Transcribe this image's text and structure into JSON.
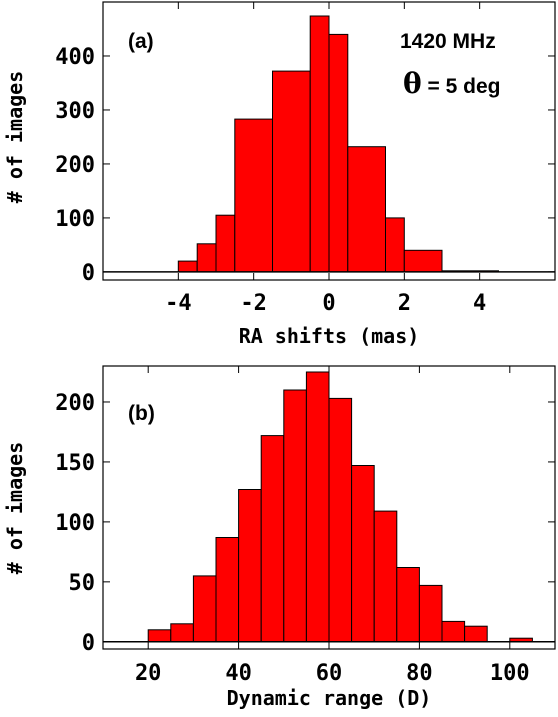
{
  "chart_data": [
    {
      "type": "bar",
      "panel_label": "(a)",
      "annotations": [
        "1420 MHz",
        "θ",
        " = 5 deg"
      ],
      "xlabel": "RA shifts (mas)",
      "ylabel": "# of images",
      "xlim": [
        -6,
        6
      ],
      "ylim": [
        -15,
        500
      ],
      "xticks": [
        -4,
        -2,
        0,
        2,
        4
      ],
      "yticks": [
        0,
        100,
        200,
        300,
        400
      ],
      "xtick_labels": [
        "-4",
        "-2",
        "0",
        "2",
        "4"
      ],
      "ytick_labels": [
        "0",
        "100",
        "200",
        "300",
        "400"
      ],
      "bins": [
        {
          "x0": -4.5,
          "x1": -4.0,
          "value": 0
        },
        {
          "x0": -4.0,
          "x1": -3.5,
          "value": 20
        },
        {
          "x0": -3.5,
          "x1": -3.0,
          "value": 52
        },
        {
          "x0": -3.0,
          "x1": -2.5,
          "value": 105
        },
        {
          "x0": -2.5,
          "x1": -1.5,
          "value": 283
        },
        {
          "x0": -1.5,
          "x1": -0.5,
          "value": 372
        },
        {
          "x0": -0.5,
          "x1": 0.0,
          "value": 474
        },
        {
          "x0": 0.0,
          "x1": 0.5,
          "value": 440
        },
        {
          "x0": 0.5,
          "x1": 1.5,
          "value": 232
        },
        {
          "x0": 1.5,
          "x1": 2.0,
          "value": 100
        },
        {
          "x0": 2.0,
          "x1": 3.0,
          "value": 40
        },
        {
          "x0": 3.0,
          "x1": 4.5,
          "value": 2
        }
      ]
    },
    {
      "type": "bar",
      "panel_label": "(b)",
      "annotations": [],
      "xlabel": "Dynamic range (D)",
      "ylabel": "# of images",
      "xlim": [
        10,
        110
      ],
      "ylim": [
        -6,
        230
      ],
      "xticks": [
        20,
        40,
        60,
        80,
        100
      ],
      "yticks": [
        0,
        50,
        100,
        150,
        200
      ],
      "xtick_labels": [
        "20",
        "40",
        "60",
        "80",
        "100"
      ],
      "ytick_labels": [
        "0",
        "50",
        "100",
        "150",
        "200"
      ],
      "bins": [
        {
          "x0": 20,
          "x1": 25,
          "value": 10
        },
        {
          "x0": 25,
          "x1": 30,
          "value": 15
        },
        {
          "x0": 30,
          "x1": 35,
          "value": 55
        },
        {
          "x0": 35,
          "x1": 40,
          "value": 87
        },
        {
          "x0": 40,
          "x1": 45,
          "value": 127
        },
        {
          "x0": 45,
          "x1": 50,
          "value": 172
        },
        {
          "x0": 50,
          "x1": 55,
          "value": 210
        },
        {
          "x0": 55,
          "x1": 60,
          "value": 225
        },
        {
          "x0": 60,
          "x1": 65,
          "value": 203
        },
        {
          "x0": 65,
          "x1": 70,
          "value": 147
        },
        {
          "x0": 70,
          "x1": 75,
          "value": 109
        },
        {
          "x0": 75,
          "x1": 80,
          "value": 62
        },
        {
          "x0": 80,
          "x1": 85,
          "value": 47
        },
        {
          "x0": 85,
          "x1": 90,
          "value": 17
        },
        {
          "x0": 90,
          "x1": 95,
          "value": 13
        },
        {
          "x0": 100,
          "x1": 105,
          "value": 3
        }
      ]
    }
  ],
  "colors": {
    "bar_fill": "#ff0000",
    "bar_stroke": "#000000"
  }
}
